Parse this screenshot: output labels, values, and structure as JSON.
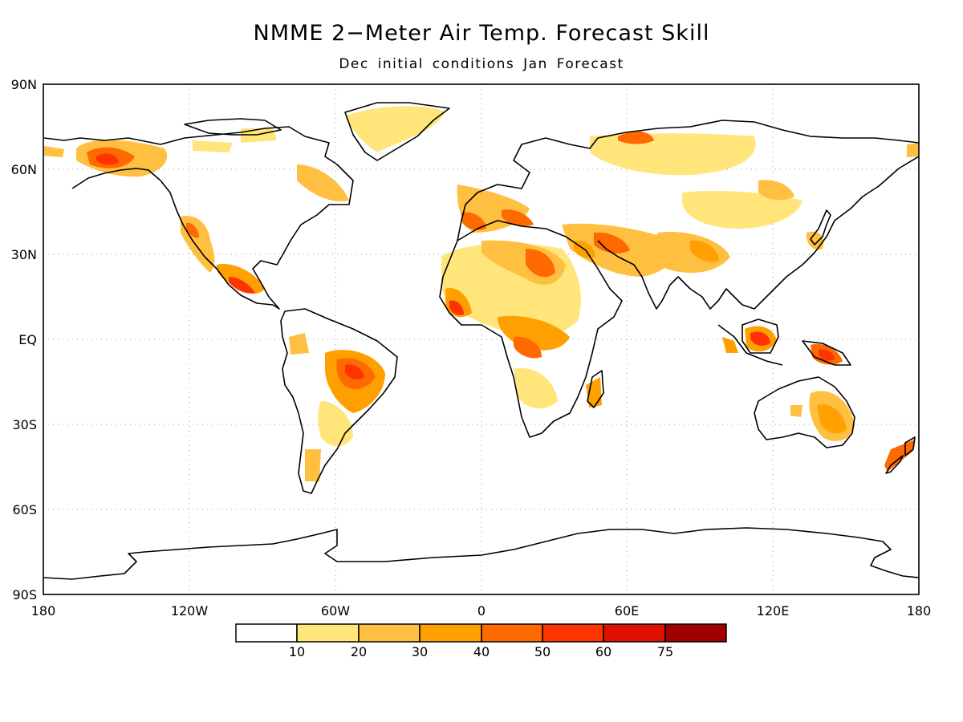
{
  "header": {
    "title": "NMME 2−Meter Air Temp. Forecast Skill",
    "subtitle": "Dec initial conditions   Jan Forecast"
  },
  "map": {
    "projection": "equirectangular",
    "lon_range": [
      -180,
      180
    ],
    "lat_range": [
      -90,
      90
    ],
    "grid": "dotted",
    "lat_labels": [
      "90N",
      "60N",
      "30N",
      "EQ",
      "30S",
      "60S",
      "90S"
    ],
    "lon_labels": [
      "180",
      "120W",
      "60W",
      "0",
      "60E",
      "120E",
      "180"
    ],
    "high_skill_regions": [
      "Alaska",
      "Mexico",
      "Central Brazil",
      "North Africa",
      "Middle East",
      "Borneo",
      "New Guinea",
      "Eastern Australia",
      "New Zealand"
    ]
  },
  "colorbar": {
    "labels": [
      "10",
      "20",
      "30",
      "40",
      "50",
      "60",
      "75"
    ],
    "colors": [
      "#ffffff",
      "#ffe57a",
      "#ffbf40",
      "#ffa000",
      "#ff6a00",
      "#ff3300",
      "#e01000",
      "#a00000"
    ]
  }
}
